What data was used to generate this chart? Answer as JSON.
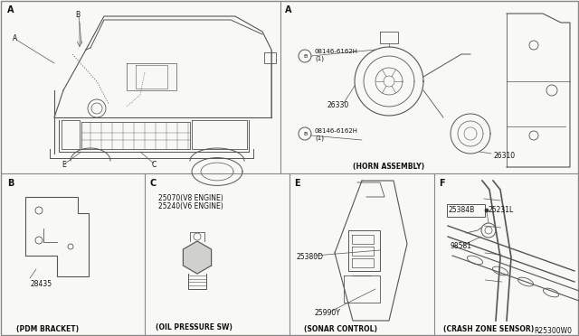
{
  "bg_color": "#f5f5f0",
  "border_color": "#333333",
  "text_color": "#111111",
  "diagram_number": "R25300W0",
  "part_numbers": {
    "horn_bolt1": "08146-6162H\n(1)",
    "horn_bolt2": "08146-6162H\n(1)",
    "horn1": "26330",
    "horn2": "26310",
    "horn_assembly": "(HORN ASSEMBLY)",
    "pdm_bracket_num": "28435",
    "pdm_bracket_label": "(PDM BRACKET)",
    "oil_v8": "25070(V8 ENGINE)",
    "oil_v6": "25240(V6 ENGINE)",
    "oil_label": "(OIL PRESSURE SW)",
    "sonar1": "25380D",
    "sonar2": "25990Y",
    "sonar_label": "(SONAR CONTROL)",
    "crash1": "25384B",
    "crash2": "25231L",
    "crash3": "98581",
    "crash_label": "(CRASH ZONE SENSOR)"
  }
}
